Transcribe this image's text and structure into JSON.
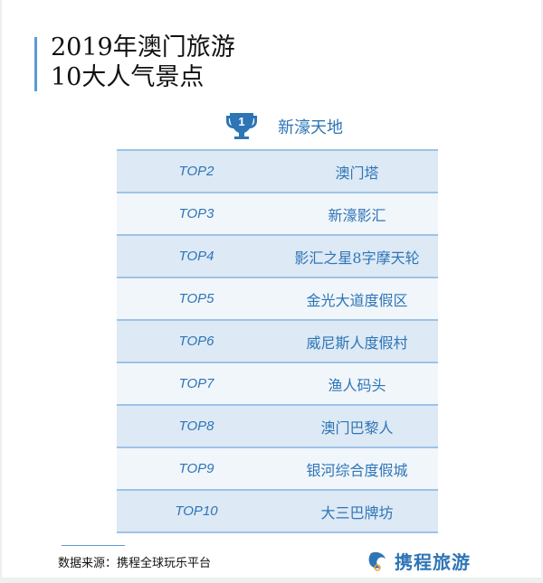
{
  "title": {
    "line1": "2019年澳门旅游",
    "line2": "10大人气景点"
  },
  "top1": {
    "badge": "1",
    "name": "新濠天地",
    "icon": "trophy-icon"
  },
  "rows": [
    {
      "rank": "TOP2",
      "name": "澳门塔"
    },
    {
      "rank": "TOP3",
      "name": "新濠影汇"
    },
    {
      "rank": "TOP4",
      "name": "影汇之星8字摩天轮"
    },
    {
      "rank": "TOP5",
      "name": "金光大道度假区"
    },
    {
      "rank": "TOP6",
      "name": "威尼斯人度假村"
    },
    {
      "rank": "TOP7",
      "name": "渔人码头"
    },
    {
      "rank": "TOP8",
      "name": "澳门巴黎人"
    },
    {
      "rank": "TOP9",
      "name": "银河综合度假城"
    },
    {
      "rank": "TOP10",
      "name": "大三巴牌坊"
    }
  ],
  "footer": {
    "source": "数据来源：携程全球玩乐平台",
    "logo_text": "携程旅游"
  },
  "colors": {
    "accent": "#2e75b6",
    "row_dark": "#dde9f5",
    "row_light": "#f1f6fb",
    "border": "#9dc3e6"
  }
}
